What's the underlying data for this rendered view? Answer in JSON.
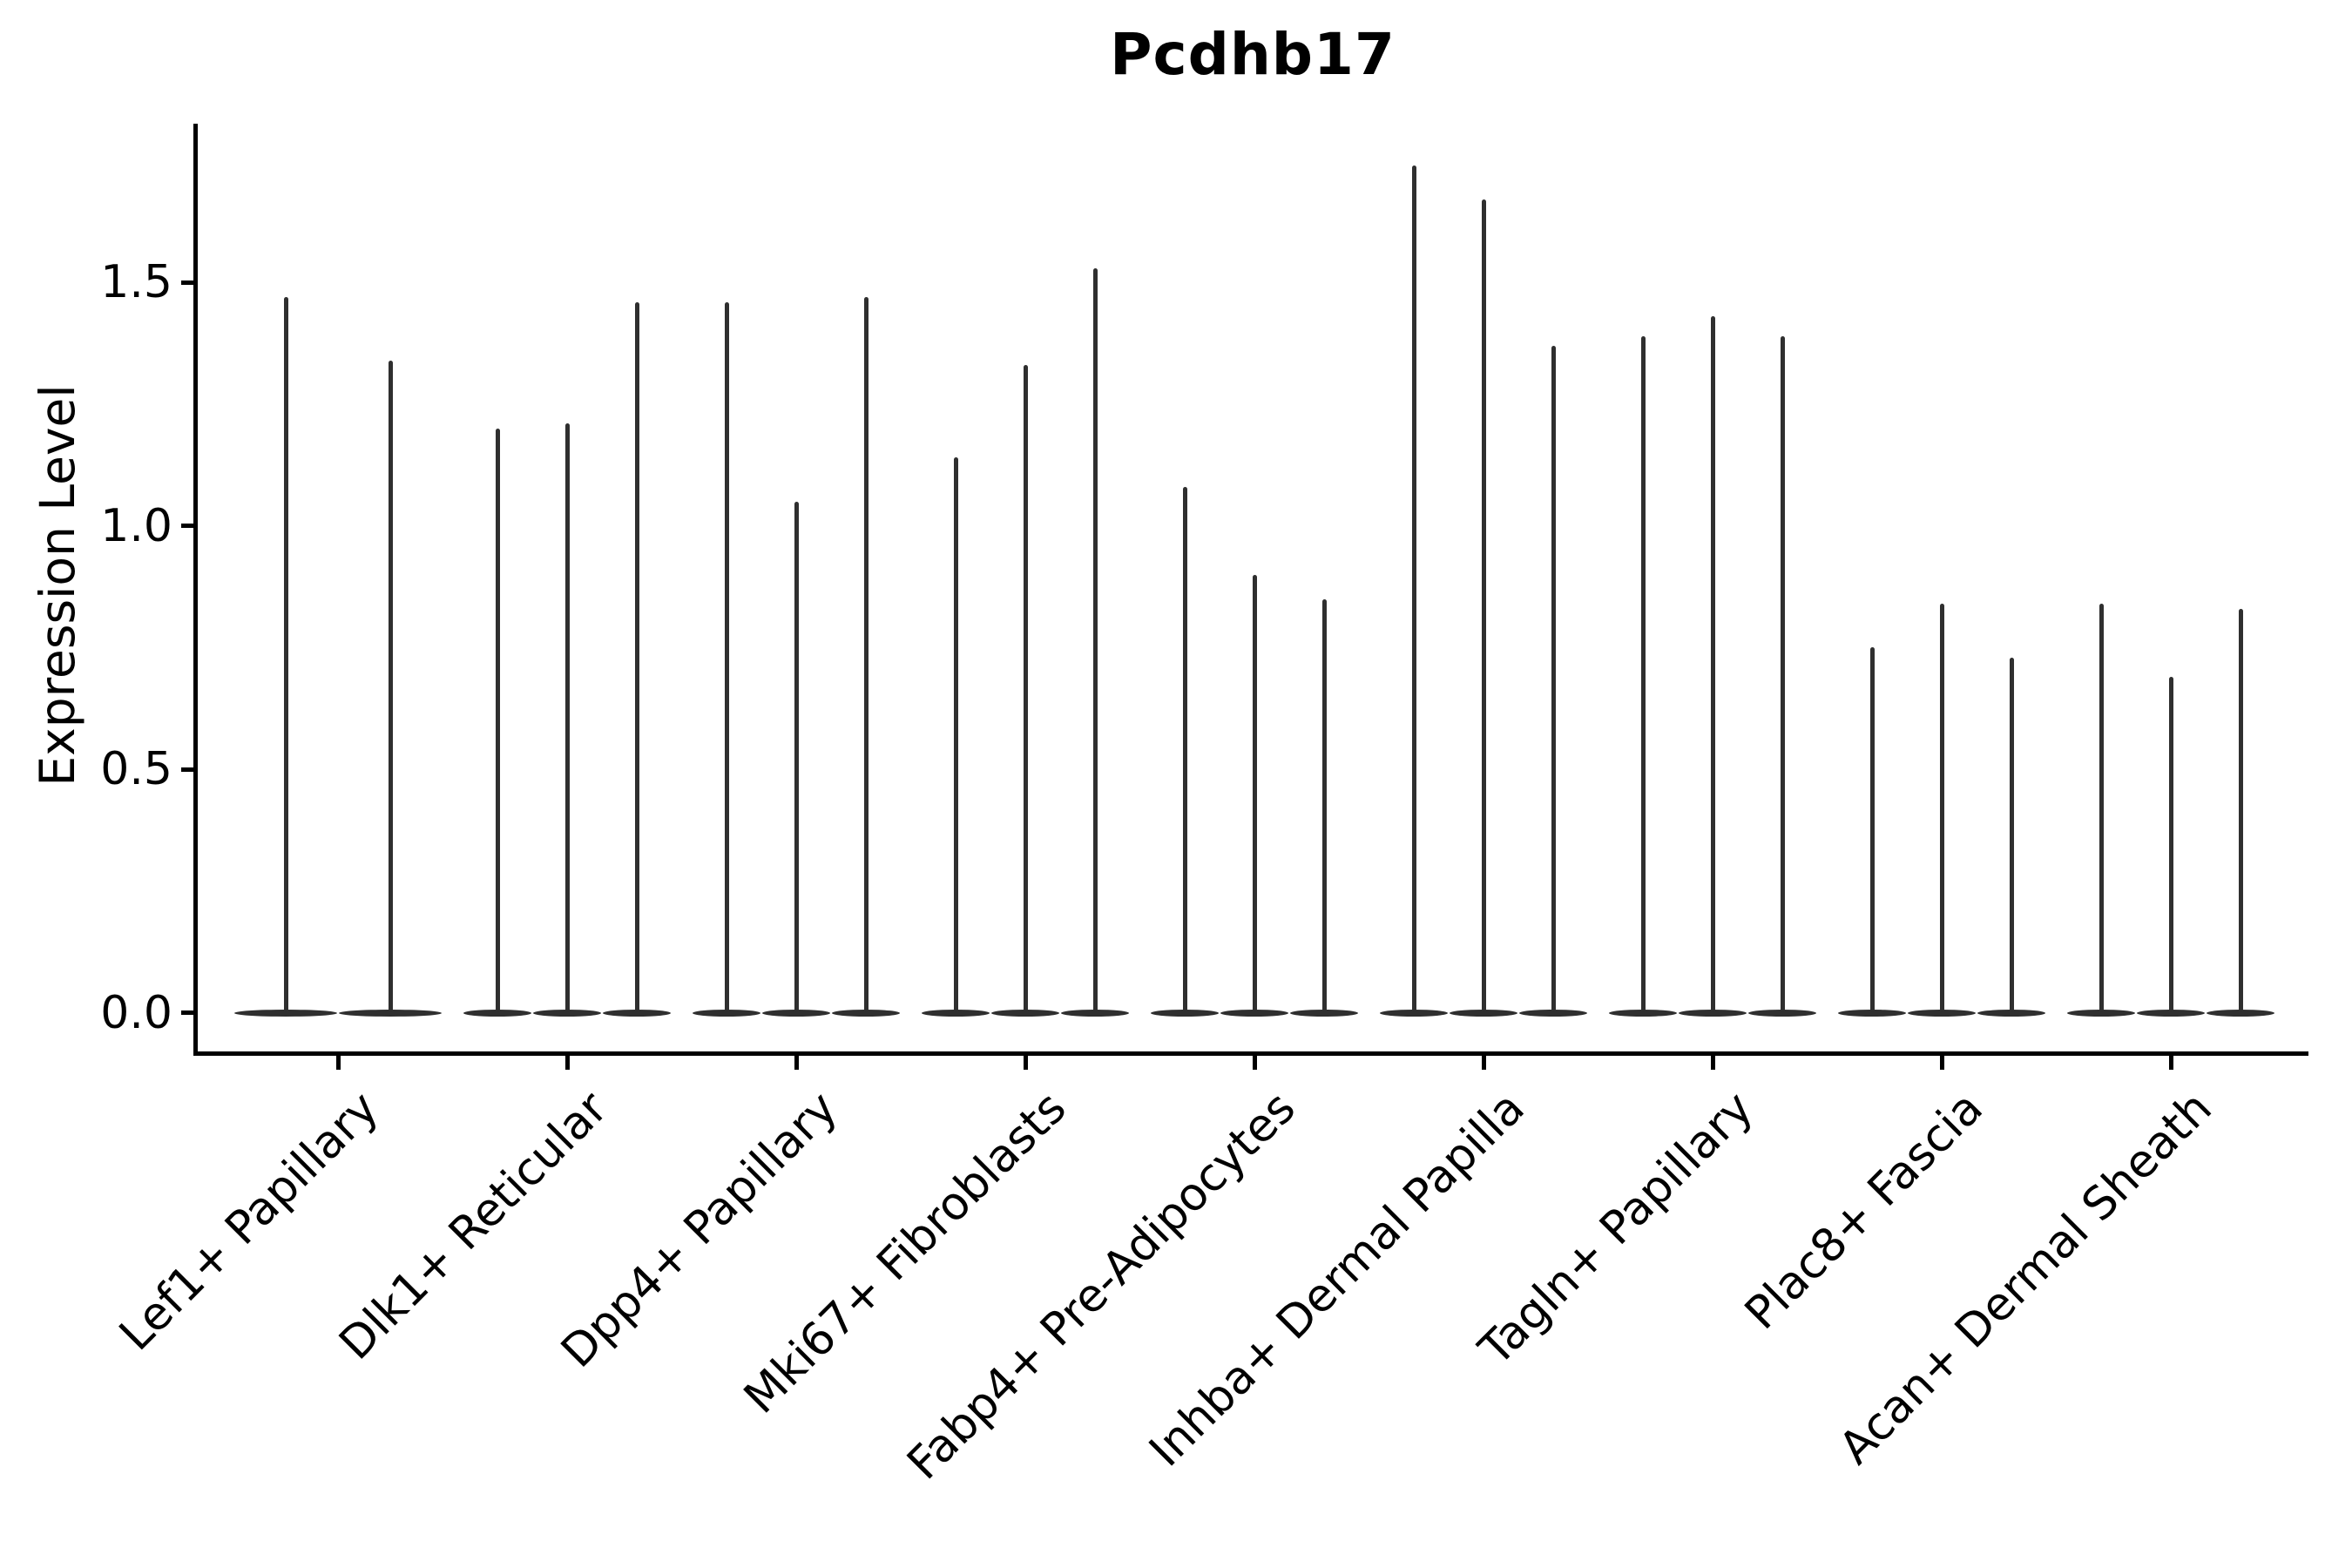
{
  "figure": {
    "background": "#ffffff"
  },
  "chart_data": {
    "type": "violin",
    "title": "Pcdhb17",
    "ylabel": "Expression Level",
    "xlabel": "",
    "grid": false,
    "legend": null,
    "ylim": [
      -0.08,
      1.83
    ],
    "yticks": [
      {
        "value": 0.0,
        "label": "0.0"
      },
      {
        "value": 0.5,
        "label": "0.5"
      },
      {
        "value": 1.0,
        "label": "1.0"
      },
      {
        "value": 1.5,
        "label": "1.5"
      }
    ],
    "categories": [
      "Lef1+ Papillary",
      "Dlk1+ Reticular",
      "Dpp4+ Papillary",
      "Mki67+ Fibroblasts",
      "Fabp4+ Pre-Adipocytes",
      "Inhba+ Dermal Papilla",
      "Tagln+ Papillary",
      "Plac8+ Fascia",
      "Acan+ Dermal Sheath"
    ],
    "baseline_value": 0.0,
    "groups": [
      {
        "label": "Lef1+ Papillary",
        "violin_peaks": [
          1.47,
          1.34
        ]
      },
      {
        "label": "Dlk1+ Reticular",
        "violin_peaks": [
          1.2,
          1.21,
          1.46
        ]
      },
      {
        "label": "Dpp4+ Papillary",
        "violin_peaks": [
          1.46,
          1.05,
          1.47
        ]
      },
      {
        "label": "Mki67+ Fibroblasts",
        "violin_peaks": [
          1.14,
          1.33,
          1.53
        ]
      },
      {
        "label": "Fabp4+ Pre-Adipocytes",
        "violin_peaks": [
          1.08,
          0.9,
          0.85
        ]
      },
      {
        "label": "Inhba+ Dermal Papilla",
        "violin_peaks": [
          1.74,
          1.67,
          1.37
        ]
      },
      {
        "label": "Tagln+ Papillary",
        "violin_peaks": [
          1.39,
          1.43,
          1.39
        ]
      },
      {
        "label": "Plac8+ Fascia",
        "violin_peaks": [
          0.75,
          0.84,
          0.73
        ]
      },
      {
        "label": "Acan+ Dermal Sheath",
        "violin_peaks": [
          0.84,
          0.69,
          0.83
        ]
      }
    ],
    "colors": {
      "violin": "#2f2f2f",
      "axis": "#000000",
      "text": "#000000",
      "background": "#ffffff"
    }
  }
}
